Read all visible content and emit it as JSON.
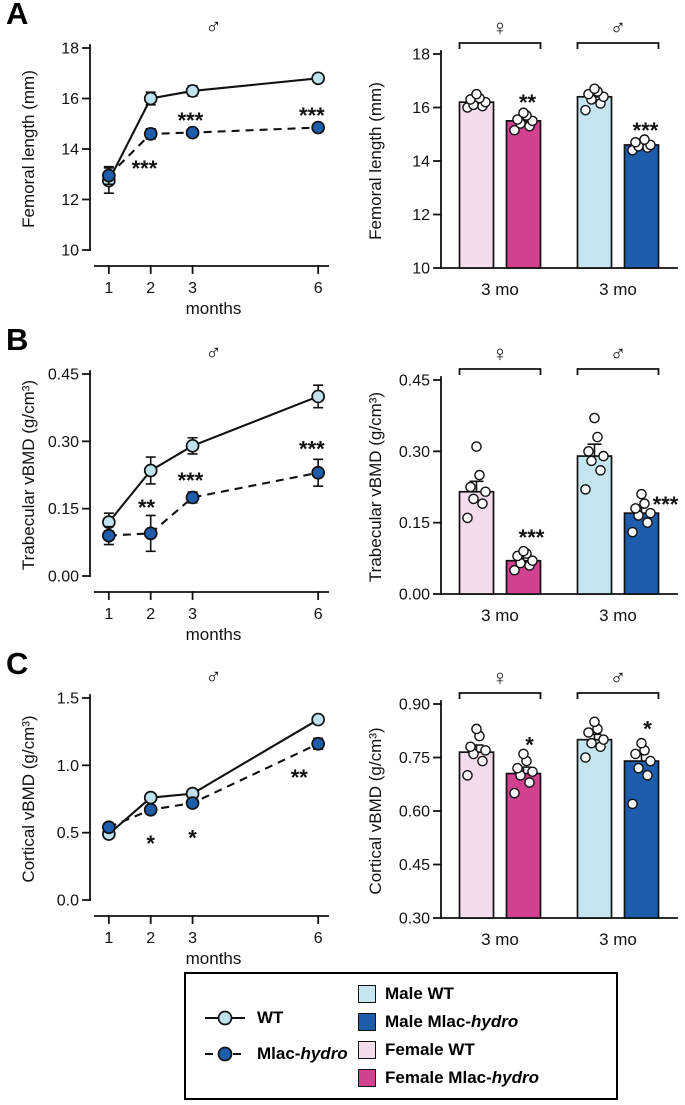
{
  "colors": {
    "axis": "#111111",
    "wt_marker": "#bfe2ee",
    "mut_marker": "#1e5cac",
    "male_wt": "#c5e6f0",
    "male_mut": "#1e5cac",
    "female_wt": "#f5dcec",
    "female_mut": "#d2418f",
    "point_fill": "#ffffff"
  },
  "chart_data": {
    "panels": [
      {
        "label": "A",
        "line": {
          "type": "line",
          "sex": "♂",
          "xlabel": "months",
          "ylabel": "Femoral length (mm)",
          "x": [
            1,
            2,
            3,
            6
          ],
          "xticklabels": [
            "1",
            "2",
            "3",
            "6"
          ],
          "ylim": [
            10,
            18
          ],
          "yticks": [
            "10",
            "12",
            "14",
            "16",
            "18"
          ],
          "series": [
            {
              "name": "WT",
              "marker": "wt_marker",
              "dash": false,
              "values": [
                12.75,
                16.0,
                16.3,
                16.8
              ],
              "errors": [
                0.5,
                0.25,
                0.2,
                0.15
              ]
            },
            {
              "name": "Mlac-hydro",
              "marker": "mut_marker",
              "dash": true,
              "values": [
                12.95,
                14.6,
                14.65,
                14.85
              ],
              "errors": [
                0.35,
                0.2,
                0.15,
                0.15
              ]
            }
          ],
          "annotations": [
            {
              "x": 1.85,
              "y": 13.45,
              "text": "***"
            },
            {
              "x": 2.95,
              "y": 15.35,
              "text": "***"
            },
            {
              "x": 5.85,
              "y": 15.55,
              "text": "***"
            }
          ]
        },
        "bars": {
          "type": "bar",
          "ylabel": "Femoral length (mm)",
          "ylim": [
            10,
            18
          ],
          "yticks": [
            "10",
            "12",
            "14",
            "16",
            "18"
          ],
          "groups": [
            {
              "sex": "♀",
              "xlabel": "3 mo",
              "bars": [
                {
                  "name": "Female WT",
                  "color": "female_wt",
                  "value": 16.2,
                  "error": 0.12,
                  "sig": "",
                  "points": [
                    16.0,
                    16.05,
                    16.1,
                    16.2,
                    16.3,
                    16.35,
                    16.5
                  ]
                },
                {
                  "name": "Female Mlac-hydro",
                  "color": "female_mut",
                  "value": 15.5,
                  "error": 0.12,
                  "sig": "**",
                  "sig_y": 16.4,
                  "sig_dx": 4,
                  "points": [
                    15.15,
                    15.3,
                    15.4,
                    15.5,
                    15.55,
                    15.7,
                    15.8
                  ]
                }
              ]
            },
            {
              "sex": "♂",
              "xlabel": "3 mo",
              "bars": [
                {
                  "name": "Male WT",
                  "color": "male_wt",
                  "value": 16.4,
                  "error": 0.12,
                  "sig": "",
                  "points": [
                    15.9,
                    16.15,
                    16.3,
                    16.4,
                    16.5,
                    16.6,
                    16.7
                  ]
                },
                {
                  "name": "Male Mlac-hydro",
                  "color": "male_mut",
                  "value": 14.6,
                  "error": 0.1,
                  "sig": "***",
                  "sig_y": 15.35,
                  "sig_dx": 4,
                  "points": [
                    14.4,
                    14.5,
                    14.55,
                    14.6,
                    14.7,
                    14.8
                  ]
                }
              ]
            }
          ]
        }
      },
      {
        "label": "B",
        "line": {
          "type": "line",
          "sex": "♂",
          "xlabel": "months",
          "ylabel": "Trabecular vBMD (g/cm³)",
          "x": [
            1,
            2,
            3,
            6
          ],
          "xticklabels": [
            "1",
            "2",
            "3",
            "6"
          ],
          "ylim": [
            0,
            0.45
          ],
          "yticks": [
            "0.00",
            "0.15",
            "0.30",
            "0.45"
          ],
          "series": [
            {
              "name": "WT",
              "marker": "wt_marker",
              "dash": false,
              "values": [
                0.12,
                0.235,
                0.29,
                0.4
              ],
              "errors": [
                0.02,
                0.03,
                0.018,
                0.025
              ]
            },
            {
              "name": "Mlac-hydro",
              "marker": "mut_marker",
              "dash": true,
              "values": [
                0.09,
                0.095,
                0.175,
                0.23
              ],
              "errors": [
                0.02,
                0.04,
                0.012,
                0.03
              ]
            }
          ],
          "annotations": [
            {
              "x": 1.9,
              "y": 0.165,
              "text": "**"
            },
            {
              "x": 2.95,
              "y": 0.225,
              "text": "***"
            },
            {
              "x": 5.85,
              "y": 0.295,
              "text": "***"
            }
          ]
        },
        "bars": {
          "type": "bar",
          "ylabel": "Trabecular vBMD (g/cm³)",
          "ylim": [
            0,
            0.45
          ],
          "yticks": [
            "0.00",
            "0.15",
            "0.30",
            "0.45"
          ],
          "groups": [
            {
              "sex": "♀",
              "xlabel": "3 mo",
              "bars": [
                {
                  "name": "Female WT",
                  "color": "female_wt",
                  "value": 0.215,
                  "error": 0.022,
                  "sig": "",
                  "points": [
                    0.16,
                    0.19,
                    0.2,
                    0.215,
                    0.225,
                    0.25,
                    0.31
                  ]
                },
                {
                  "name": "Female Mlac-hydro",
                  "color": "female_mut",
                  "value": 0.07,
                  "error": 0.008,
                  "sig": "***",
                  "sig_y": 0.13,
                  "sig_dx": 8,
                  "points": [
                    0.05,
                    0.06,
                    0.065,
                    0.07,
                    0.08,
                    0.085,
                    0.09
                  ]
                }
              ]
            },
            {
              "sex": "♂",
              "xlabel": "3 mo",
              "bars": [
                {
                  "name": "Male WT",
                  "color": "male_wt",
                  "value": 0.29,
                  "error": 0.025,
                  "sig": "",
                  "points": [
                    0.22,
                    0.26,
                    0.28,
                    0.29,
                    0.3,
                    0.33,
                    0.37
                  ]
                },
                {
                  "name": "Male Mlac-hydro",
                  "color": "male_mut",
                  "value": 0.17,
                  "error": 0.015,
                  "sig": "***",
                  "sig_y": 0.2,
                  "sig_dx": 24,
                  "points": [
                    0.13,
                    0.15,
                    0.165,
                    0.17,
                    0.18,
                    0.19,
                    0.21
                  ]
                }
              ]
            }
          ]
        }
      },
      {
        "label": "C",
        "line": {
          "type": "line",
          "sex": "♂",
          "xlabel": "months",
          "ylabel": "Cortical vBMD (g/cm³)",
          "x": [
            1,
            2,
            3,
            6
          ],
          "xticklabels": [
            "1",
            "2",
            "3",
            "6"
          ],
          "ylim": [
            0,
            1.5
          ],
          "yticks": [
            "0.0",
            "0.5",
            "1.0",
            "1.5"
          ],
          "series": [
            {
              "name": "WT",
              "marker": "wt_marker",
              "dash": false,
              "values": [
                0.49,
                0.76,
                0.79,
                1.34
              ],
              "errors": [
                0.03,
                0.03,
                0.03,
                0.03
              ]
            },
            {
              "name": "Mlac-hydro",
              "marker": "mut_marker",
              "dash": true,
              "values": [
                0.54,
                0.67,
                0.72,
                1.16
              ],
              "errors": [
                0.03,
                0.03,
                0.03,
                0.04
              ]
            }
          ],
          "annotations": [
            {
              "x": 2,
              "y": 0.46,
              "text": "*"
            },
            {
              "x": 3,
              "y": 0.5,
              "text": "*"
            },
            {
              "x": 5.55,
              "y": 0.95,
              "text": "**"
            }
          ]
        },
        "bars": {
          "type": "bar",
          "ylabel": "Cortical vBMD (g/cm³)",
          "ylim": [
            0.3,
            0.9
          ],
          "yticks": [
            "0.30",
            "0.45",
            "0.60",
            "0.75",
            "0.90"
          ],
          "groups": [
            {
              "sex": "♀",
              "xlabel": "3 mo",
              "bars": [
                {
                  "name": "Female WT",
                  "color": "female_wt",
                  "value": 0.765,
                  "error": 0.02,
                  "sig": "",
                  "points": [
                    0.7,
                    0.74,
                    0.76,
                    0.77,
                    0.78,
                    0.81,
                    0.83
                  ]
                },
                {
                  "name": "Female Mlac-hydro",
                  "color": "female_mut",
                  "value": 0.705,
                  "error": 0.018,
                  "sig": "*",
                  "sig_y": 0.8,
                  "sig_dx": 6,
                  "points": [
                    0.65,
                    0.68,
                    0.7,
                    0.71,
                    0.72,
                    0.74,
                    0.76
                  ]
                }
              ]
            },
            {
              "sex": "♂",
              "xlabel": "3 mo",
              "bars": [
                {
                  "name": "Male WT",
                  "color": "male_wt",
                  "value": 0.8,
                  "error": 0.015,
                  "sig": "",
                  "points": [
                    0.75,
                    0.78,
                    0.79,
                    0.8,
                    0.82,
                    0.83,
                    0.85
                  ]
                },
                {
                  "name": "Male Mlac-hydro",
                  "color": "male_mut",
                  "value": 0.74,
                  "error": 0.02,
                  "sig": "*",
                  "sig_y": 0.845,
                  "sig_dx": 6,
                  "points": [
                    0.62,
                    0.7,
                    0.72,
                    0.74,
                    0.76,
                    0.77,
                    0.79
                  ]
                }
              ]
            }
          ]
        }
      }
    ]
  },
  "legend": {
    "line_items": [
      {
        "marker": "wt_marker",
        "dash": false,
        "prefix": "WT",
        "italic": ""
      },
      {
        "marker": "mut_marker",
        "dash": true,
        "prefix": "Mlac-",
        "italic": "hydro"
      }
    ],
    "swatch_items": [
      {
        "color": "male_wt",
        "prefix": "Male WT",
        "italic": ""
      },
      {
        "color": "male_mut",
        "prefix": "Male Mlac-",
        "italic": "hydro"
      },
      {
        "color": "female_wt",
        "prefix": "Female WT",
        "italic": ""
      },
      {
        "color": "female_mut",
        "prefix": "Female Mlac-",
        "italic": "hydro"
      }
    ]
  }
}
